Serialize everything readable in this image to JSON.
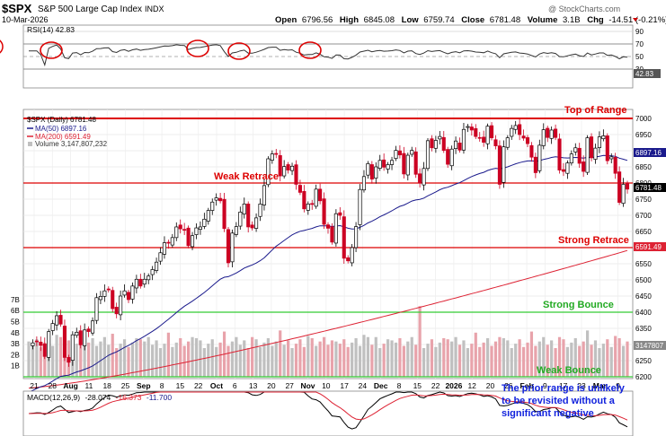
{
  "header": {
    "symbol": "$SPX",
    "name": "S&P 500 Large Cap Index",
    "exchange": "INDX",
    "date": "10-Mar-2026",
    "watermark": "@ StockCharts.com",
    "open_label": "Open",
    "open": "6796.56",
    "high_label": "High",
    "high": "6845.08",
    "low_label": "Low",
    "low": "6759.74",
    "close_label": "Close",
    "close": "6781.48",
    "volume_label": "Volume",
    "volume": "3.1B",
    "chg_label": "Chg",
    "chg": "-14.51 (-0.21%)"
  },
  "colors": {
    "up_candle": "#000000",
    "down_candle": "#cc0022",
    "ma50": "#1a1a8c",
    "ma200": "#dd2233",
    "resistance_line": "#dd0000",
    "support_line": "#33cc33",
    "annotation_red": "#dd0000",
    "annotation_green": "#22aa22",
    "annotation_blue": "#1122dd",
    "volume_up": "#c0c0c0",
    "volume_down": "#e8a3ab",
    "rsi_circle": "#dd0000"
  },
  "rsi_panel": {
    "legend": "RSI(14) 42.83",
    "ticks": [
      "90",
      "70",
      "50",
      "30"
    ],
    "last_value_tag": "42.83"
  },
  "price_panel": {
    "legend_title": "$SPX (Daily) 6781.48",
    "legend_ma50": "MA(50) 6897.16",
    "legend_ma200": "MA(200) 6591.49",
    "legend_volume": "Volume 3,147,807,232",
    "tag_close": "6781.48",
    "tag_ma50": "6897.16",
    "tag_ma200": "6591.49",
    "tag_volume": "3147807",
    "volume_ticks": [
      "7B",
      "6B",
      "5B",
      "4B",
      "3B",
      "2B",
      "1B"
    ],
    "annotations": {
      "top_of_range": "Top of Range",
      "weak_retrace": "Weak Retrace",
      "strong_retrace": "Strong Retrace",
      "strong_bounce": "Strong Bounce",
      "weak_bounce": "Weak Bounce",
      "note_line1": "The prior range is unlikely",
      "note_line2": "to be revisited without a",
      "note_line3": "significant negative"
    }
  },
  "macd_panel": {
    "legend_name": "MACD(12,26,9)",
    "legend_macd": "-28.074",
    "legend_signal": "-16.373",
    "legend_hist": "-11.700"
  },
  "x_axis_labels": [
    "21",
    "28",
    "Aug",
    "11",
    "18",
    "25",
    "Sep",
    "8",
    "15",
    "22",
    "Oct",
    "6",
    "13",
    "20",
    "27",
    "Nov",
    "10",
    "17",
    "24",
    "Dec",
    "8",
    "15",
    "22",
    "2026",
    "12",
    "20",
    "26",
    "Feb",
    "9",
    "17",
    "23",
    "Mar",
    "9"
  ],
  "chart_data": {
    "type": "candlestick",
    "title": "$SPX S&P 500 Large Cap Index",
    "y_axis": {
      "ticks": [
        6200,
        6250,
        6300,
        6350,
        6400,
        6450,
        6500,
        6550,
        6600,
        6650,
        6700,
        6750,
        6800,
        6850,
        6900,
        6950,
        7000
      ],
      "range": [
        6190,
        7010
      ]
    },
    "series": [
      {
        "name": "MA(50)",
        "last": 6897.16
      },
      {
        "name": "MA(200)",
        "last": 6591.49
      },
      {
        "name": "RSI(14)",
        "last": 42.83
      },
      {
        "name": "MACD(12,26,9)",
        "macd": -28.074,
        "signal": -16.373,
        "hist": -11.7
      }
    ],
    "levels": [
      {
        "label": "Top of Range",
        "value": 7000
      },
      {
        "label": "Weak Retrace",
        "value": 6800
      },
      {
        "label": "Strong Retrace",
        "value": 6600
      },
      {
        "label": "Strong Bounce",
        "value": 6400
      },
      {
        "label": "Weak Bounce",
        "value": 6200
      }
    ],
    "closes": [
      6296,
      6305,
      6309,
      6297,
      6263,
      6340,
      6365,
      6389,
      6363,
      6260,
      6245,
      6330,
      6338,
      6299,
      6345,
      6340,
      6373,
      6445,
      6449,
      6466,
      6469,
      6411,
      6395,
      6450,
      6466,
      6439,
      6481,
      6502,
      6481,
      6502,
      6512,
      6532,
      6555,
      6584,
      6615,
      6614,
      6631,
      6664,
      6658,
      6656,
      6606,
      6637,
      6661,
      6664,
      6688,
      6715,
      6741,
      6754,
      6745,
      6659,
      6553,
      6645,
      6665,
      6710,
      6735,
      6664,
      6661,
      6692,
      6735,
      6792,
      6875,
      6890,
      6891,
      6822,
      6851,
      6840,
      6852,
      6796,
      6771,
      6720,
      6735,
      6734,
      6781,
      6745,
      6672,
      6660,
      6617,
      6705,
      6700,
      6567,
      6559,
      6600,
      6665,
      6780,
      6820,
      6860,
      6812,
      6850,
      6870,
      6849,
      6857,
      6870,
      6901,
      6887,
      6828,
      6886,
      6901,
      6827,
      6800,
      6845,
      6931,
      6909,
      6932,
      6944,
      6901,
      6858,
      6905,
      6930,
      6902,
      6966,
      6975,
      6964,
      6944,
      6939,
      6926,
      6976,
      6940,
      6915,
      6796,
      6912,
      6940,
      6969,
      6978,
      6950,
      6939,
      6922,
      6880,
      6832,
      6917,
      6965,
      6941,
      6964,
      6941,
      6840,
      6836,
      6862,
      6890,
      6909,
      6861,
      6836,
      6940,
      6878,
      6908,
      6943,
      6946,
      6869,
      6881,
      6830,
      6740,
      6796,
      6781
    ]
  }
}
